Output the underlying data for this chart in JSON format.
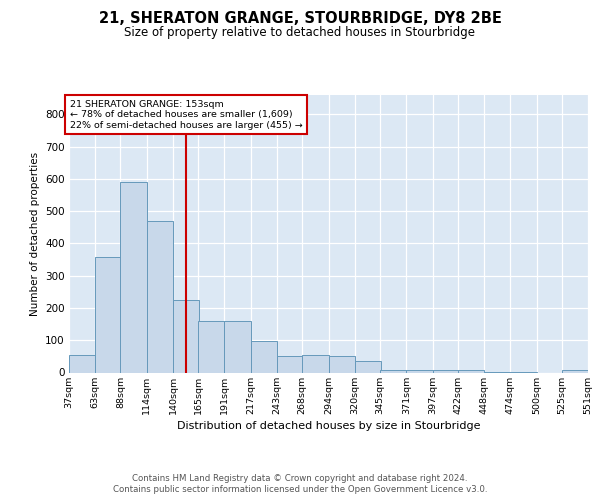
{
  "title_line1": "21, SHERATON GRANGE, STOURBRIDGE, DY8 2BE",
  "title_line2": "Size of property relative to detached houses in Stourbridge",
  "xlabel": "Distribution of detached houses by size in Stourbridge",
  "ylabel": "Number of detached properties",
  "bar_color": "#c8d8ea",
  "bar_edge_color": "#6699bb",
  "background_color": "#dce8f4",
  "grid_color": "#ffffff",
  "vline_color": "#cc0000",
  "vline_x": 153,
  "annotation_text": "21 SHERATON GRANGE: 153sqm\n← 78% of detached houses are smaller (1,609)\n22% of semi-detached houses are larger (455) →",
  "footer_line1": "Contains HM Land Registry data © Crown copyright and database right 2024.",
  "footer_line2": "Contains public sector information licensed under the Open Government Licence v3.0.",
  "bins_left": [
    37,
    63,
    88,
    114,
    140,
    165,
    191,
    217,
    243,
    268,
    294,
    320,
    345,
    371,
    397,
    422,
    448,
    474,
    500,
    525
  ],
  "bin_width": 26,
  "last_bin_edge": 551,
  "values": [
    55,
    358,
    590,
    468,
    225,
    160,
    160,
    97,
    50,
    55,
    50,
    35,
    9,
    9,
    9,
    9,
    3,
    3,
    0,
    9
  ],
  "ylim": [
    0,
    860
  ],
  "yticks": [
    0,
    100,
    200,
    300,
    400,
    500,
    600,
    700,
    800
  ],
  "xtick_labels": [
    "37sqm",
    "63sqm",
    "88sqm",
    "114sqm",
    "140sqm",
    "165sqm",
    "191sqm",
    "217sqm",
    "243sqm",
    "268sqm",
    "294sqm",
    "320sqm",
    "345sqm",
    "371sqm",
    "397sqm",
    "422sqm",
    "448sqm",
    "474sqm",
    "500sqm",
    "525sqm",
    "551sqm"
  ]
}
